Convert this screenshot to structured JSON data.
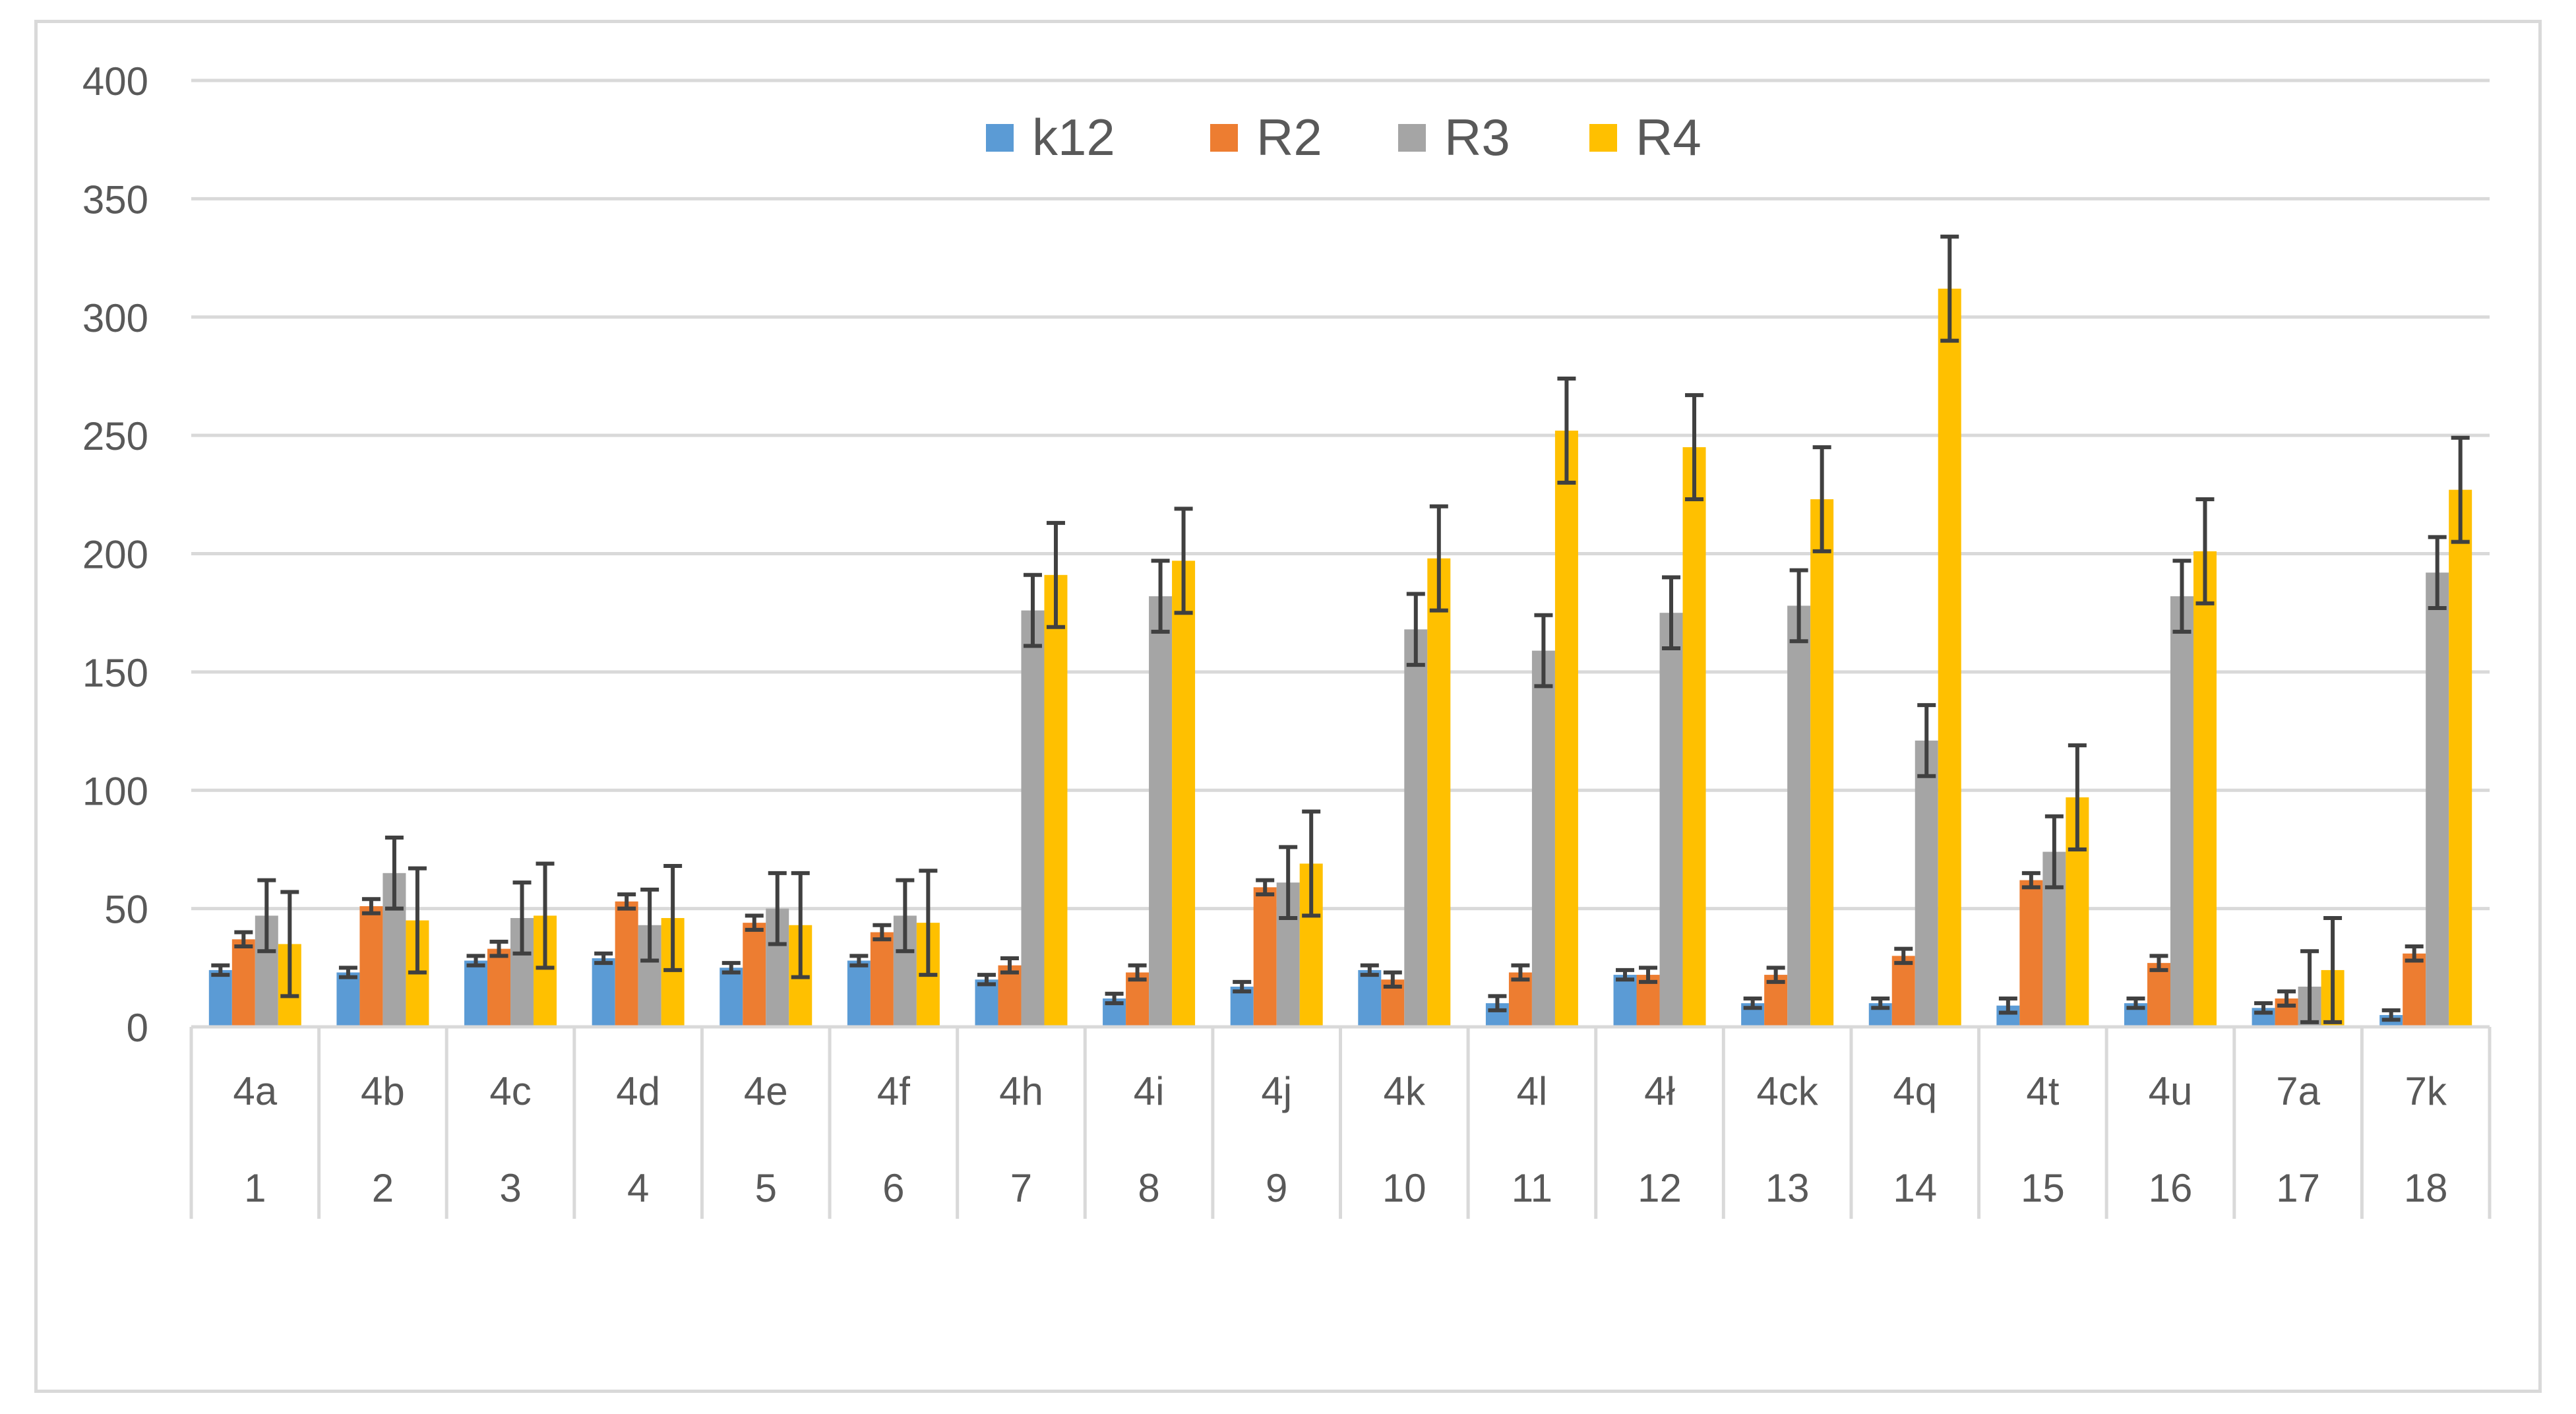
{
  "chart_data": {
    "type": "bar",
    "title": "",
    "xlabel": "",
    "ylabel": "",
    "ylim": [
      0,
      400
    ],
    "yticks": [
      0,
      50,
      100,
      150,
      200,
      250,
      300,
      350,
      400
    ],
    "grid": true,
    "legend_position": "top",
    "categories": [
      "4a",
      "4b",
      "4c",
      "4d",
      "4e",
      "4f",
      "4h",
      "4i",
      "4j",
      "4k",
      "4l",
      "4ł",
      "4ck",
      "4q",
      "4t",
      "4u",
      "7a",
      "7k"
    ],
    "category_numbers": [
      "1",
      "2",
      "3",
      "4",
      "5",
      "6",
      "7",
      "8",
      "9",
      "10",
      "11",
      "12",
      "13",
      "14",
      "15",
      "16",
      "17",
      "18"
    ],
    "series": [
      {
        "name": "k12",
        "color": "#5b9bd5",
        "values": [
          24,
          23,
          28,
          29,
          25,
          28,
          20,
          12,
          17,
          24,
          10,
          22,
          10,
          10,
          9,
          10,
          8,
          5
        ],
        "errors": [
          2,
          2,
          2,
          2,
          2,
          2,
          2,
          2,
          2,
          2,
          3,
          2,
          2,
          2,
          3,
          2,
          2,
          2
        ]
      },
      {
        "name": "R2",
        "color": "#ed7d31",
        "values": [
          37,
          51,
          33,
          53,
          44,
          40,
          26,
          23,
          59,
          20,
          23,
          22,
          22,
          30,
          62,
          27,
          12,
          31
        ],
        "errors": [
          3,
          3,
          3,
          3,
          3,
          3,
          3,
          3,
          3,
          3,
          3,
          3,
          3,
          3,
          3,
          3,
          3,
          3
        ]
      },
      {
        "name": "R3",
        "color": "#a5a5a5",
        "values": [
          47,
          65,
          46,
          43,
          50,
          47,
          176,
          182,
          61,
          168,
          159,
          175,
          178,
          121,
          74,
          182,
          17,
          192
        ],
        "errors": [
          15,
          15,
          15,
          15,
          15,
          15,
          15,
          15,
          15,
          15,
          15,
          15,
          15,
          15,
          15,
          15,
          15,
          15
        ]
      },
      {
        "name": "R4",
        "color": "#ffc000",
        "values": [
          35,
          45,
          47,
          46,
          43,
          44,
          191,
          197,
          69,
          198,
          252,
          245,
          223,
          312,
          97,
          201,
          24,
          227
        ],
        "errors": [
          22,
          22,
          22,
          22,
          22,
          22,
          22,
          22,
          22,
          22,
          22,
          22,
          22,
          22,
          22,
          22,
          22,
          22
        ]
      }
    ]
  }
}
